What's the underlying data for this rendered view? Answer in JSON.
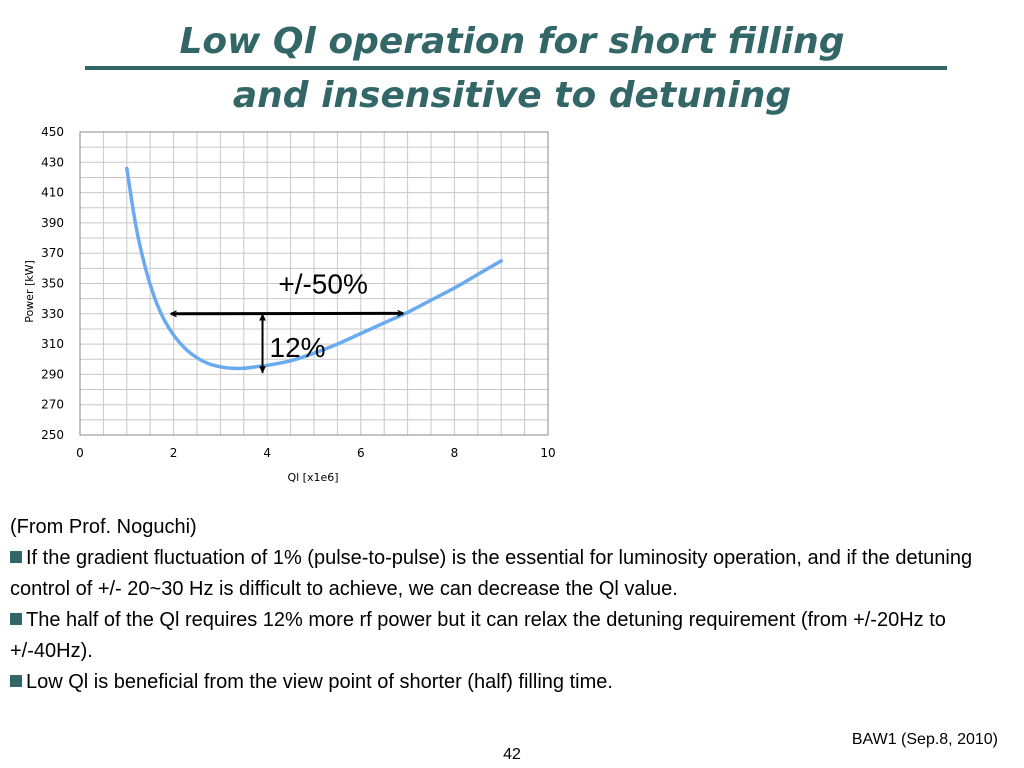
{
  "slide": {
    "title_line1": "Low Ql operation for short filling",
    "title_line2": "and insensitive to detuning",
    "source": "(From Prof. Noguchi)",
    "bullets": [
      "If the gradient fluctuation of 1% (pulse-to-pulse) is the essential for luminosity operation, and if the detuning control of +/- 20~30 Hz is difficult to achieve, we can decrease the Ql value.",
      "The half of the Ql requires 12% more rf power but it can relax the detuning requirement (from +/-20Hz to +/-40Hz).",
      "Low Ql is beneficial from the view point of shorter (half)  filling time."
    ],
    "footer": "BAW1 (Sep.8, 2010)",
    "page_number": "42",
    "colors": {
      "title": "#336666",
      "curve": "#6aaaf0",
      "bullet": "#336666",
      "grid": "#c8c8c8"
    }
  },
  "chart_data": {
    "type": "line",
    "xlabel": "Ql [x1e6]",
    "ylabel": "Power [kW]",
    "xlim": [
      0,
      10
    ],
    "ylim": [
      250,
      450
    ],
    "x_ticks": [
      "0",
      "2",
      "4",
      "6",
      "8",
      "10"
    ],
    "y_ticks": [
      "250",
      "270",
      "290",
      "310",
      "330",
      "350",
      "370",
      "390",
      "410",
      "430",
      "450"
    ],
    "grid": true,
    "series": [
      {
        "x": [
          1.0,
          1.2,
          1.4,
          1.6,
          1.8,
          2.0,
          2.25,
          2.5,
          2.75,
          3.0,
          3.25,
          3.5,
          3.75,
          4.0,
          4.5,
          5.0,
          5.5,
          6.0,
          6.5,
          7.0,
          7.5,
          8.0,
          8.5,
          9.0
        ],
        "y": [
          426,
          387,
          360,
          340,
          326,
          316,
          307,
          301,
          297,
          295,
          294,
          294,
          295,
          296,
          299,
          304,
          310,
          317,
          324,
          331,
          339,
          347,
          356,
          365
        ]
      }
    ],
    "annotations": [
      {
        "text": "+/-50%",
        "x": 5.75,
        "y": 350
      },
      {
        "text": "12%",
        "x": 4.05,
        "y": 308
      }
    ],
    "arrows": [
      {
        "type": "horizontal",
        "x_start": 1.95,
        "x_end": 6.9,
        "y": 330
      },
      {
        "type": "vertical",
        "x": 3.9,
        "y_start": 330,
        "y_end": 291
      }
    ]
  }
}
